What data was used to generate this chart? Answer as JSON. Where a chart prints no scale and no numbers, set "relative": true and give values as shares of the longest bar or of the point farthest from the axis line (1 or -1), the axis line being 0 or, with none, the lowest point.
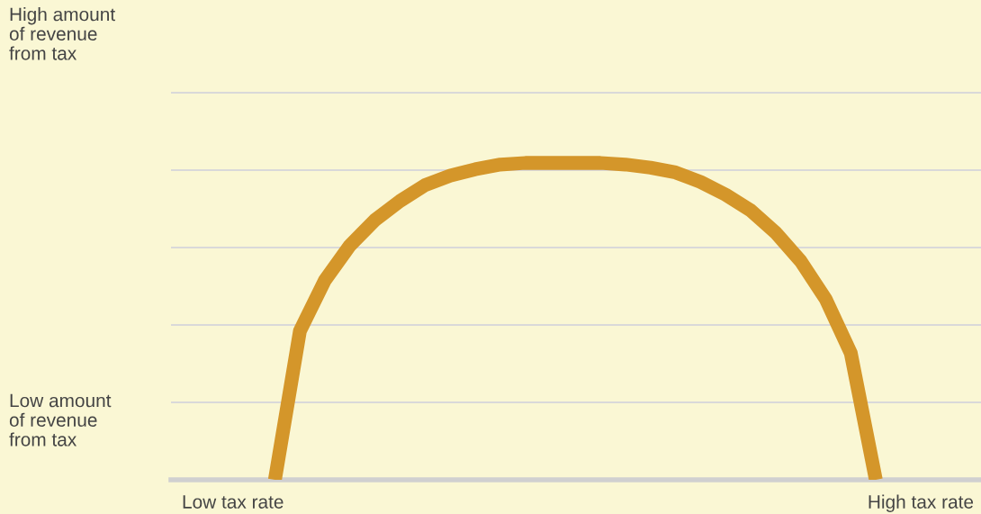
{
  "chart_data": {
    "type": "line",
    "relative": true,
    "categories": [
      null,
      null,
      null,
      null,
      null,
      null,
      null,
      null,
      null,
      null,
      null,
      null,
      null,
      null,
      null,
      null,
      null,
      null,
      null,
      null,
      null,
      null,
      null,
      null,
      null,
      null,
      null,
      null,
      null,
      null,
      null,
      null,
      null
    ],
    "series": [
      {
        "color": "#d4962a",
        "values": [
          null,
          null,
          null,
          null,
          0,
          0.47,
          0.63,
          0.74,
          0.82,
          0.88,
          0.93,
          0.96,
          0.98,
          0.995,
          1.0,
          1.0,
          1.0,
          1.0,
          0.995,
          0.985,
          0.97,
          0.94,
          0.9,
          0.85,
          0.78,
          0.69,
          0.57,
          0.4,
          0,
          null,
          null,
          null,
          null
        ]
      }
    ],
    "annotations": [
      "High amount\nof revenue\nfrom tax",
      "Low amount\nof revenue\nfrom tax",
      "Low tax rate",
      "High tax rate"
    ],
    "grid": "y",
    "marker": "none",
    "line_style": "solid",
    "legend": false,
    "tick_labels": false
  }
}
